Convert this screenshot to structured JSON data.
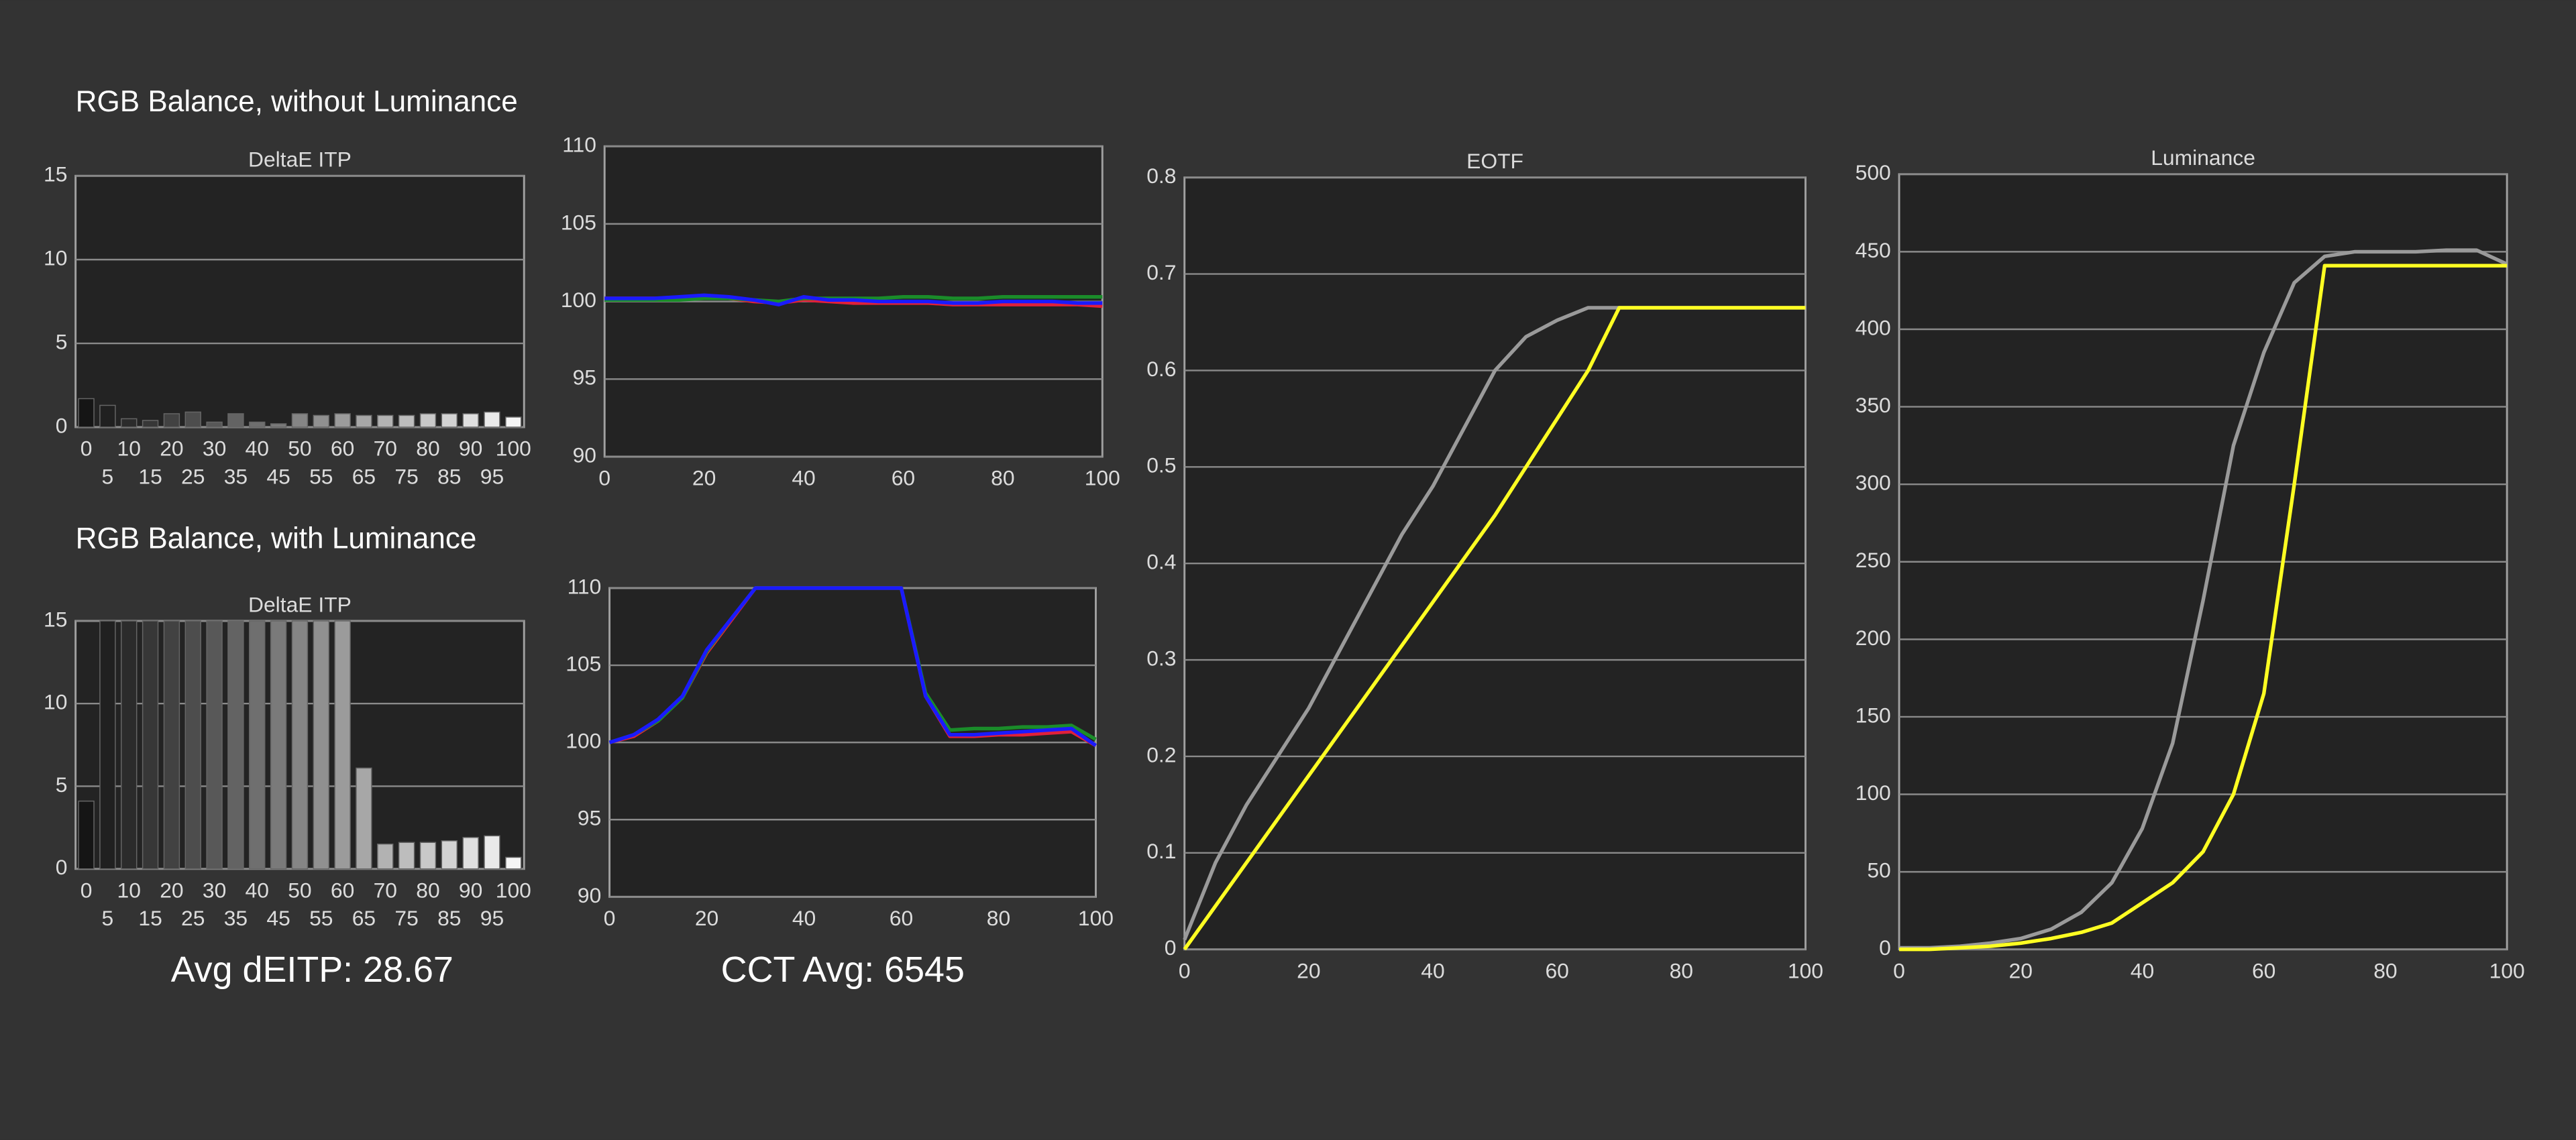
{
  "headings": [
    "RGB Balance, without Luminance",
    "RGB Balance, with Luminance"
  ],
  "summaries": [
    "Avg dEITP: 28.67",
    "CCT Avg: 6545"
  ],
  "chart_data": [
    {
      "type": "bar",
      "title": "DeltaE ITP",
      "categories": [
        0,
        5,
        10,
        15,
        20,
        25,
        30,
        35,
        40,
        45,
        50,
        55,
        60,
        65,
        70,
        75,
        80,
        85,
        90,
        95,
        100
      ],
      "values": [
        1.7,
        1.3,
        0.5,
        0.4,
        0.8,
        0.9,
        0.3,
        0.8,
        0.3,
        0.2,
        0.8,
        0.7,
        0.8,
        0.7,
        0.7,
        0.7,
        0.8,
        0.8,
        0.8,
        0.9,
        0.6
      ],
      "colors": [
        "#151515",
        "#f5f5f5"
      ],
      "ylim": [
        0,
        15
      ],
      "yticks": [
        0,
        5,
        10,
        15
      ],
      "grid": true
    },
    {
      "type": "line",
      "x": [
        0,
        5,
        10,
        15,
        20,
        25,
        30,
        35,
        40,
        45,
        50,
        55,
        60,
        65,
        70,
        75,
        80,
        85,
        90,
        95,
        100
      ],
      "xlim": [
        0,
        100
      ],
      "xticks": [
        0,
        20,
        40,
        60,
        80,
        100
      ],
      "ylim": [
        90,
        110
      ],
      "yticks": [
        90,
        95,
        100,
        105,
        110
      ],
      "grid": true,
      "series": [
        {
          "color": "#e0203a",
          "values": [
            100.2,
            100.2,
            100.2,
            100.2,
            100.3,
            100.2,
            100,
            99.9,
            100.1,
            100,
            99.9,
            99.9,
            99.9,
            99.9,
            99.8,
            99.8,
            99.8,
            99.8,
            99.8,
            99.8,
            99.7
          ]
        },
        {
          "color": "#1a8c2a",
          "values": [
            100.1,
            100.1,
            100.1,
            100.1,
            100.2,
            100.2,
            100.1,
            100,
            100.2,
            100.2,
            100.2,
            100.2,
            100.3,
            100.3,
            100.2,
            100.2,
            100.3,
            100.3,
            100.3,
            100.3,
            100.3
          ]
        },
        {
          "color": "#1a1aff",
          "values": [
            100.2,
            100.2,
            100.2,
            100.3,
            100.4,
            100.3,
            100.1,
            99.8,
            100.3,
            100.1,
            100.1,
            100,
            100,
            100,
            99.9,
            99.9,
            100,
            100,
            100,
            99.9,
            99.9
          ]
        }
      ]
    },
    {
      "type": "bar",
      "title": "DeltaE ITP",
      "categories": [
        0,
        5,
        10,
        15,
        20,
        25,
        30,
        35,
        40,
        45,
        50,
        55,
        60,
        65,
        70,
        75,
        80,
        85,
        90,
        95,
        100
      ],
      "values": [
        4.1,
        15,
        15,
        15,
        15,
        15,
        15,
        15,
        15,
        15,
        15,
        15,
        15,
        6.1,
        1.5,
        1.6,
        1.6,
        1.7,
        1.9,
        2.0,
        0.7
      ],
      "colors": [
        "#151515",
        "#f5f5f5"
      ],
      "ylim": [
        0,
        15
      ],
      "yticks": [
        0,
        5,
        10,
        15
      ],
      "grid": true
    },
    {
      "type": "line",
      "x": [
        0,
        5,
        10,
        15,
        20,
        25,
        30,
        35,
        40,
        45,
        50,
        55,
        60,
        65,
        70,
        75,
        80,
        85,
        90,
        95,
        100
      ],
      "xlim": [
        0,
        100
      ],
      "xticks": [
        0,
        20,
        40,
        60,
        80,
        100
      ],
      "ylim": [
        90,
        110
      ],
      "yticks": [
        90,
        95,
        100,
        105,
        110
      ],
      "grid": true,
      "series": [
        {
          "color": "#e0203a",
          "values": [
            100,
            100.4,
            101.4,
            102.9,
            105.8,
            107.9,
            110,
            110,
            110,
            110,
            110,
            110,
            110,
            103,
            100.4,
            100.4,
            100.5,
            100.5,
            100.6,
            100.7,
            99.8
          ]
        },
        {
          "color": "#1a8c2a",
          "values": [
            100,
            100.5,
            101.4,
            102.9,
            105.9,
            108,
            110,
            110,
            110,
            110,
            110,
            110,
            110,
            103.2,
            100.8,
            100.9,
            100.9,
            101,
            101,
            101.1,
            100.2
          ]
        },
        {
          "color": "#1a1aff",
          "values": [
            100,
            100.5,
            101.5,
            103,
            106,
            108,
            110,
            110,
            110,
            110,
            110,
            110,
            110,
            103,
            100.5,
            100.5,
            100.6,
            100.7,
            100.8,
            100.9,
            99.8
          ]
        }
      ]
    },
    {
      "type": "line",
      "title": "EOTF",
      "x": [
        0,
        5,
        10,
        15,
        20,
        25,
        30,
        35,
        40,
        45,
        50,
        55,
        60,
        65,
        70,
        75,
        80,
        85,
        90,
        95,
        100
      ],
      "xlim": [
        0,
        100
      ],
      "xticks": [
        0,
        20,
        40,
        60,
        80,
        100
      ],
      "ylim": [
        0,
        0.8
      ],
      "yticks": [
        0,
        0.1,
        0.2,
        0.3,
        0.4,
        0.5,
        0.6,
        0.7,
        0.8
      ],
      "grid": true,
      "series": [
        {
          "color": "#9a9a9a",
          "values": [
            0.01,
            0.09,
            0.15,
            0.2,
            0.25,
            0.31,
            0.37,
            0.43,
            0.48,
            0.54,
            0.6,
            0.635,
            0.652,
            0.665,
            0.665,
            0.665,
            0.665,
            0.665,
            0.665,
            0.665,
            0.665
          ]
        },
        {
          "color": "#ffff22",
          "values": [
            0,
            0.045,
            0.09,
            0.135,
            0.18,
            0.225,
            0.27,
            0.315,
            0.36,
            0.405,
            0.45,
            0.5,
            0.55,
            0.6,
            0.665,
            0.665,
            0.665,
            0.665,
            0.665,
            0.665,
            0.665
          ]
        }
      ]
    },
    {
      "type": "line",
      "title": "Luminance",
      "x": [
        0,
        5,
        10,
        15,
        20,
        25,
        30,
        35,
        40,
        45,
        50,
        55,
        60,
        65,
        70,
        75,
        80,
        85,
        90,
        95,
        100
      ],
      "xlim": [
        0,
        100
      ],
      "xticks": [
        0,
        20,
        40,
        60,
        80,
        100
      ],
      "ylim": [
        0,
        500
      ],
      "yticks": [
        0,
        50,
        100,
        150,
        200,
        250,
        300,
        350,
        400,
        450,
        500
      ],
      "grid": true,
      "series": [
        {
          "color": "#9a9a9a",
          "values": [
            1,
            1,
            2,
            4,
            7,
            13,
            24,
            43,
            78,
            133,
            225,
            325,
            385,
            430,
            447,
            450,
            450,
            450,
            451,
            451,
            442
          ]
        },
        {
          "color": "#ffff22",
          "values": [
            0,
            0,
            1,
            2,
            4,
            7,
            11,
            17,
            30,
            43,
            63,
            100,
            165,
            300,
            441,
            441,
            441,
            441,
            441,
            441,
            441
          ]
        }
      ]
    }
  ]
}
